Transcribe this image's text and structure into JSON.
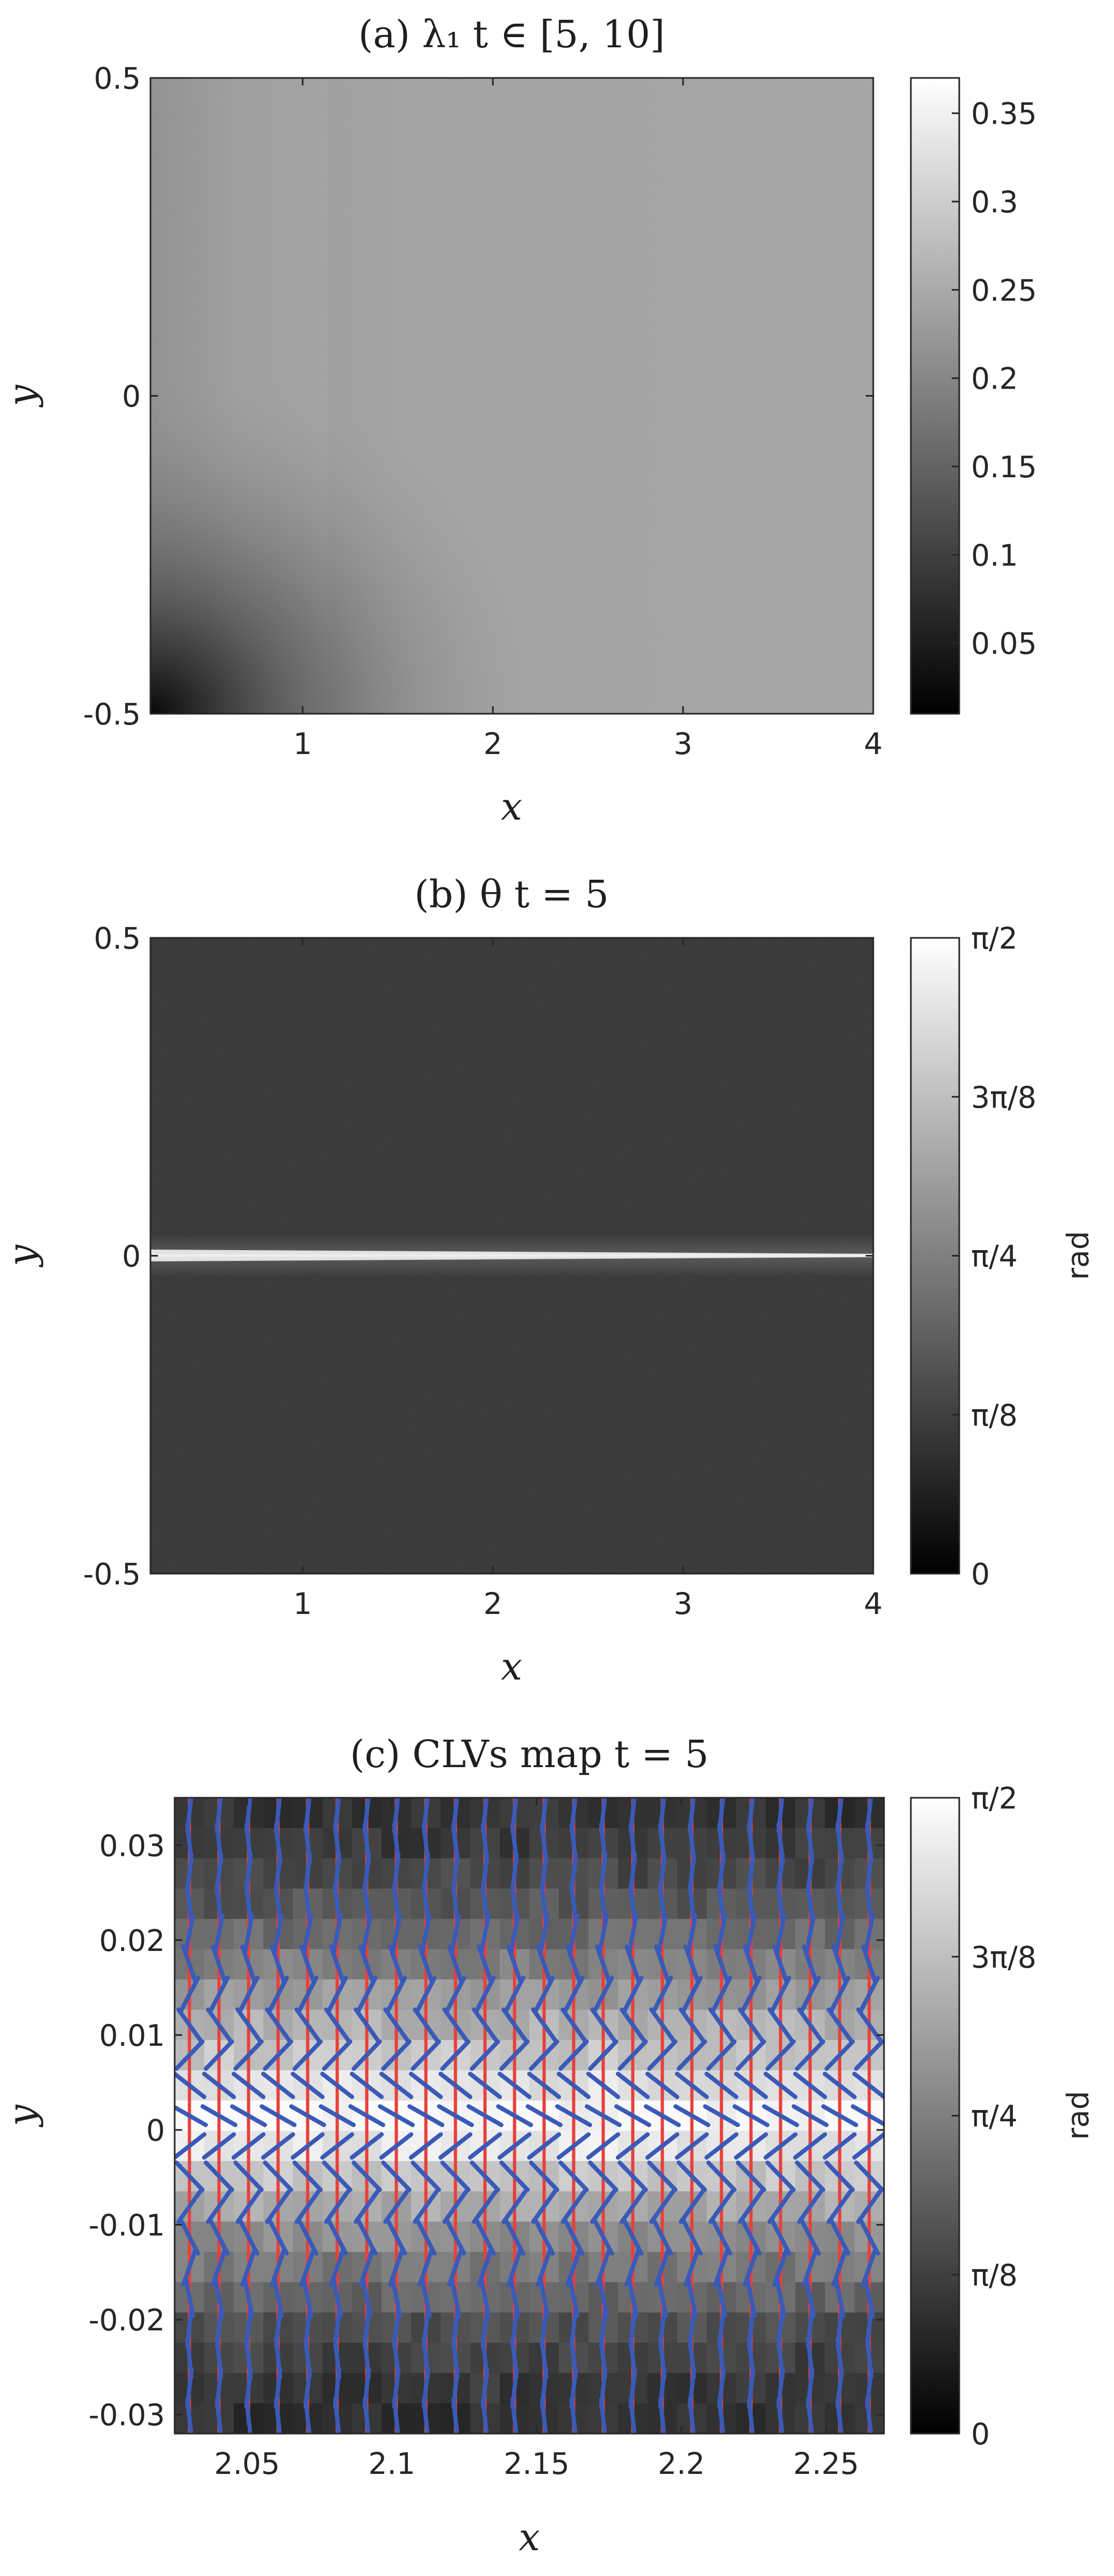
{
  "colors": {
    "text": "#262626",
    "red_vector": "#e8403a",
    "blue_vector": "#3a5ab8"
  },
  "chart_data": [
    {
      "type": "heatmap",
      "title": "(a) λ₁     t ∈ [5,  10]",
      "xlabel": "x",
      "ylabel": "y",
      "xlim": [
        0.2,
        4
      ],
      "ylim": [
        -0.5,
        0.5
      ],
      "x_ticks": [
        "1",
        "2",
        "3",
        "4"
      ],
      "y_ticks": [
        "0.5",
        "0",
        "-0.5"
      ],
      "colormap": "gray",
      "colorbar": {
        "range": [
          0.01,
          0.37
        ],
        "ticks": [
          "0.35",
          "0.3",
          "0.25",
          "0.2",
          "0.15",
          "0.1",
          "0.05"
        ],
        "label": ""
      },
      "field_summary": {
        "bulk_value": 0.25,
        "left_edge_value": 0.2,
        "lower_left_corner_value": 0.05,
        "noisy_region": "lower-left"
      }
    },
    {
      "type": "heatmap",
      "title": "(b) θ         t = 5",
      "xlabel": "x",
      "ylabel": "y",
      "xlim": [
        0.2,
        4
      ],
      "ylim": [
        -0.5,
        0.5
      ],
      "x_ticks": [
        "1",
        "2",
        "3",
        "4"
      ],
      "y_ticks": [
        "0.5",
        "0",
        "-0.5"
      ],
      "colormap": "gray",
      "colorbar": {
        "range": [
          0,
          1.5708
        ],
        "ticks": [
          "π/2",
          "3π/8",
          "π/4",
          "π/8",
          "0"
        ],
        "label": "rad"
      },
      "field_summary": {
        "bulk_value": 0.15,
        "centerline_value": 1.2,
        "centerline_y": 0,
        "spread_near_left_edge": 0.3
      }
    },
    {
      "type": "heatmap",
      "title": "(c) CLVs map t = 5",
      "xlabel": "x",
      "ylabel": "y",
      "xlim": [
        2.025,
        2.27
      ],
      "ylim": [
        -0.032,
        0.035
      ],
      "x_ticks": [
        "2.05",
        "2.1",
        "2.15",
        "2.2",
        "2.25"
      ],
      "y_ticks": [
        "0.03",
        "0.02",
        "0.01",
        "0",
        "-0.01",
        "-0.02",
        "-0.03"
      ],
      "colormap": "gray",
      "colorbar": {
        "range": [
          0,
          1.5708
        ],
        "ticks": [
          "π/2",
          "3π/8",
          "π/4",
          "π/8",
          "0"
        ],
        "label": "rad"
      },
      "vector_series": [
        {
          "color": "red",
          "direction": "vertical"
        },
        {
          "color": "blue",
          "direction": "tilted, flattening toward y = 0"
        }
      ],
      "row_values": [
        0.15,
        0.2,
        0.3,
        0.4,
        0.55,
        0.7,
        0.9,
        1.05,
        1.2,
        1.4,
        1.55,
        1.45,
        1.2,
        1.0,
        0.8,
        0.65,
        0.5,
        0.35,
        0.25,
        0.18,
        0.12
      ]
    }
  ]
}
